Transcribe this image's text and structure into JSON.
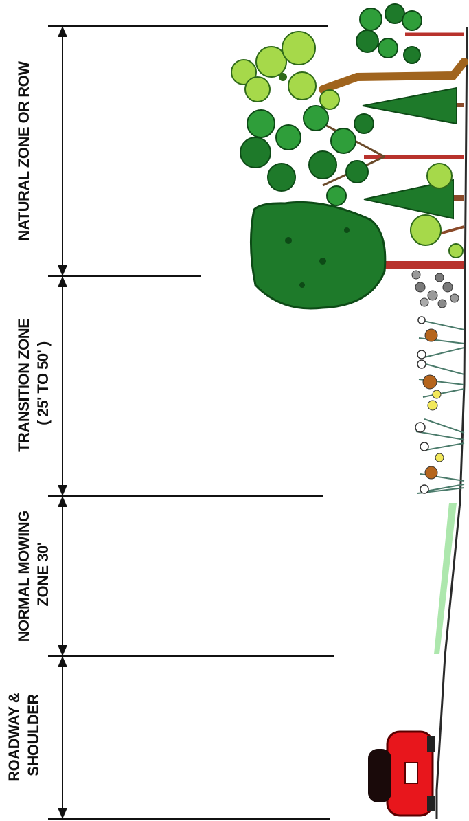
{
  "diagram": {
    "zones": [
      {
        "id": "roadway",
        "lines": [
          "ROADWAY &",
          "SHOULDER"
        ]
      },
      {
        "id": "mowing",
        "lines": [
          "NORMAL MOWING",
          "ZONE 30'"
        ]
      },
      {
        "id": "transition",
        "lines": [
          "TRANSITION ZONE",
          "( 25' TO 50' )"
        ]
      },
      {
        "id": "natural",
        "lines": [
          "NATURAL ZONE OR ROW"
        ]
      }
    ]
  },
  "colors": {
    "line": "#111111",
    "ground": "#2a2a2a",
    "grass": "#9fe39f",
    "car_body": "#e8161c",
    "car_dark": "#5a0000",
    "tree_dark": "#1e7a2a",
    "tree_mid": "#2f9e3a",
    "tree_light": "#a6d94a",
    "trunk_red": "#b8322c",
    "trunk_brown": "#a0641e",
    "flower_yellow": "#f2e85a",
    "flower_brown": "#b5651d",
    "weed_grey": "#7a7a7a"
  }
}
